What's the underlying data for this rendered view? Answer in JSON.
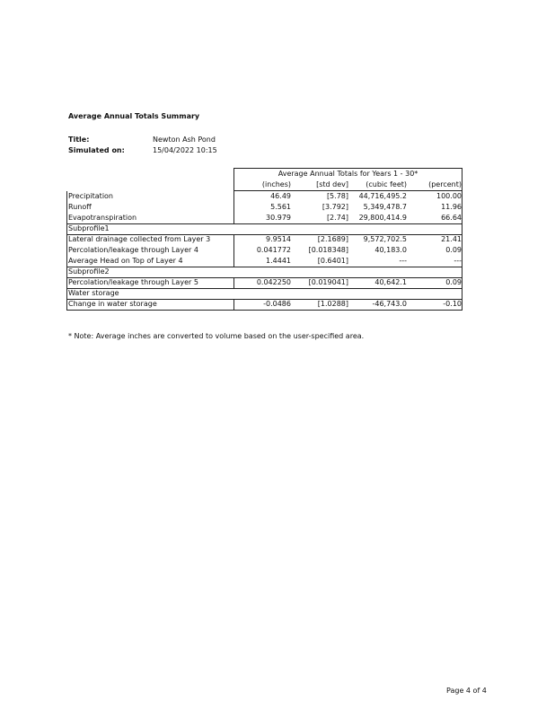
{
  "header": {
    "title": "Average Annual Totals Summary"
  },
  "info": [
    {
      "label": "Title:",
      "value": "Newton Ash Pond"
    },
    {
      "label": "Simulated on:",
      "value": "15/04/2022 10:15"
    }
  ],
  "table": {
    "caption": "Average Annual Totals for Years 1 - 30*",
    "columns": [
      "(inches)",
      "[std dev]",
      "(cubic feet)",
      "(percent)"
    ],
    "rows": [
      {
        "label": "Precipitation",
        "values": [
          "46.49",
          "[5.78]",
          "44,716,495.2",
          "100.00"
        ]
      },
      {
        "label": "Runoff",
        "values": [
          "5.561",
          "[3.792]",
          "5,349,478.7",
          "11.96"
        ]
      },
      {
        "label": "Evapotranspiration",
        "values": [
          "30.979",
          "[2.74]",
          "29,800,414.9",
          "66.64"
        ]
      },
      {
        "section": "Subprofile1"
      },
      {
        "label": "Lateral drainage collected from Layer 3",
        "values": [
          "9.9514",
          "[2.1689]",
          "9,572,702.5",
          "21.41"
        ]
      },
      {
        "label": "Percolation/leakage through Layer 4",
        "values": [
          "0.041772",
          "[0.018348]",
          "40,183.0",
          "0.09"
        ]
      },
      {
        "label": "Average Head on Top of Layer 4",
        "values": [
          "1.4441",
          "[0.6401]",
          "---",
          "---"
        ]
      },
      {
        "section": "Subprofile2"
      },
      {
        "label": "Percolation/leakage through Layer 5",
        "values": [
          "0.042250",
          "[0.019041]",
          "40,642.1",
          "0.09"
        ]
      },
      {
        "section": "Water storage"
      },
      {
        "label": "Change in water storage",
        "values": [
          "-0.0486",
          "[1.0288]",
          "-46,743.0",
          "-0.10"
        ]
      }
    ]
  },
  "note": "* Note: Average inches are converted to volume based on the user-specified area.",
  "footer": "Page 4 of 4"
}
